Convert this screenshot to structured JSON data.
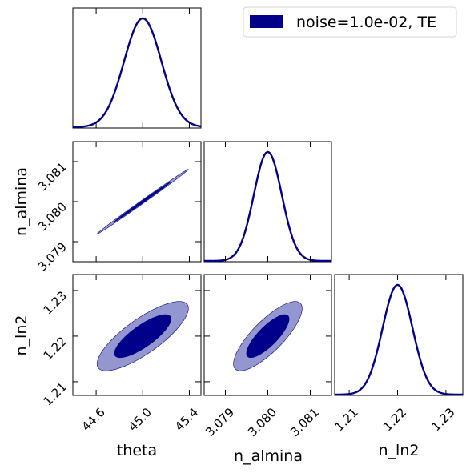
{
  "chart_data": {
    "type": "corner",
    "parameters": [
      "theta",
      "n_almina",
      "n_ln2"
    ],
    "axis_labels": {
      "theta": "theta",
      "n_almina": "n_almina",
      "n_ln2": "n_ln2"
    },
    "means": {
      "theta": 45.0,
      "n_almina": 3.08,
      "n_ln2": 1.22
    },
    "sigmas": {
      "theta": 0.16,
      "n_almina": 0.00033,
      "n_ln2": 0.0031
    },
    "correlations": {
      "theta_n_almina": 0.998,
      "theta_n_ln2": 0.8,
      "n_almina_n_ln2": 0.8
    },
    "ranges": {
      "theta": [
        44.4,
        45.5
      ],
      "n_almina": [
        3.0785,
        3.0815
      ],
      "n_ln2": [
        1.207,
        1.2335
      ]
    },
    "ticks": {
      "theta": {
        "values": [
          44.6,
          45.0,
          45.4
        ],
        "labels": [
          "44.6",
          "45.0",
          "45.4"
        ]
      },
      "n_almina": {
        "values": [
          3.079,
          3.08,
          3.081
        ],
        "labels": [
          "3.079",
          "3.080",
          "3.081"
        ]
      },
      "n_ln2": {
        "values": [
          1.21,
          1.22,
          1.23
        ],
        "labels": [
          "1.21",
          "1.22",
          "1.23"
        ]
      }
    },
    "series": [
      {
        "name": "noise=1.0e-02, TE"
      }
    ],
    "contour_levels": [
      "68%",
      "95%"
    ],
    "legend_position": "top-right",
    "grid": false,
    "colors": {
      "line": "#00008b",
      "inner_fill": "#00008b",
      "outer_fill": "#9497cf"
    }
  }
}
